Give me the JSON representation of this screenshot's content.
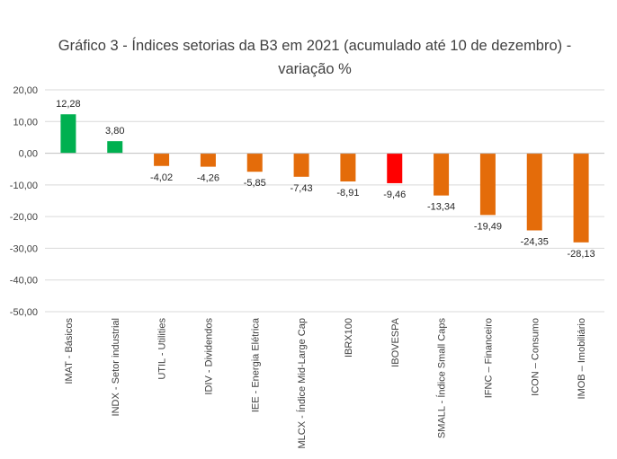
{
  "chart_data": {
    "type": "bar",
    "title": "Gráfico 3 - Índices setorias da B3 em 2021 (acumulado até 10 de dezembro) - variação %",
    "categories": [
      "IMAT - Básicos",
      "INDX - Setor industrial",
      "UTIL - Utilities",
      "IDIV - Dividendos",
      "IEE - Energia Elétrica",
      "MLCX - Índice Mid-Large Cap",
      "IBRX100",
      "IBOVESPA",
      "SMALL - Índice Small Caps",
      "IFNC – Financeiro",
      "ICON – Consumo",
      "IMOB – Imobiliário"
    ],
    "values": [
      12.28,
      3.8,
      -4.02,
      -4.26,
      -5.85,
      -7.43,
      -8.91,
      -9.46,
      -13.34,
      -19.49,
      -24.35,
      -28.13
    ],
    "data_labels": [
      "12,28",
      "3,80",
      "-4,02",
      "-4,26",
      "-5,85",
      "-7,43",
      "-8,91",
      "-9,46",
      "-13,34",
      "-19,49",
      "-24,35",
      "-28,13"
    ],
    "ylim": [
      -50,
      20
    ],
    "yticks": [
      20,
      10,
      0,
      -10,
      -20,
      -30,
      -40,
      -50
    ],
    "ytick_labels": [
      "20,00",
      "10,00",
      "0,00",
      "-10,00",
      "-20,00",
      "-30,00",
      "-40,00",
      "-50,00"
    ],
    "grid": true,
    "xlabel": "",
    "ylabel": "",
    "colors": {
      "positive": "#00b050",
      "negative": "#e46c0a",
      "highlight": "#ff0000",
      "grid": "#d9d9d9",
      "axis": "#bfbfbf"
    },
    "highlight_category": "IBOVESPA"
  }
}
